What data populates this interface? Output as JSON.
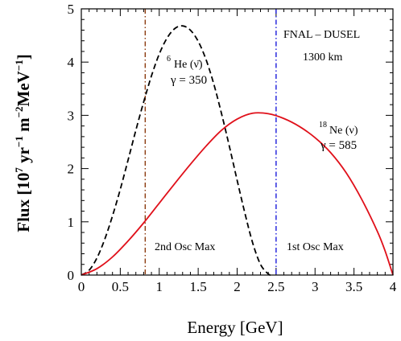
{
  "chart_data": {
    "type": "line",
    "xlabel": "Energy [GeV]",
    "ylabel": "Flux",
    "ylabel_unit": "[10⁷ yr⁻¹ m⁻² MeV⁻¹]",
    "xlim": [
      0,
      4
    ],
    "ylim": [
      0,
      5
    ],
    "x_ticks": [
      "0",
      "0.5",
      "1",
      "1.5",
      "2",
      "2.5",
      "3",
      "3.5",
      "4"
    ],
    "y_ticks": [
      "0",
      "1",
      "2",
      "3",
      "4",
      "5"
    ],
    "grid": false,
    "series": [
      {
        "id": "he6",
        "label_iso": "6",
        "label_main": "He (ν̄)",
        "label_gamma": "γ = 350",
        "color": "#000000",
        "style": "dashed",
        "x": [
          0,
          0.1,
          0.2,
          0.3,
          0.4,
          0.5,
          0.6,
          0.7,
          0.8,
          0.9,
          1.0,
          1.1,
          1.2,
          1.3,
          1.4,
          1.5,
          1.6,
          1.7,
          1.8,
          1.9,
          2.0,
          2.1,
          2.2,
          2.3,
          2.4,
          2.44
        ],
        "y": [
          0,
          0.09,
          0.32,
          0.67,
          1.11,
          1.61,
          2.16,
          2.72,
          3.25,
          3.74,
          4.15,
          4.45,
          4.63,
          4.68,
          4.6,
          4.39,
          4.05,
          3.59,
          3.03,
          2.42,
          1.78,
          1.16,
          0.6,
          0.2,
          0.02,
          0
        ]
      },
      {
        "id": "ne18",
        "label_iso": "18",
        "label_main": "Ne (ν)",
        "label_gamma": "γ = 585",
        "color": "#e0101a",
        "style": "solid",
        "x": [
          0,
          0.2,
          0.4,
          0.6,
          0.8,
          1.0,
          1.2,
          1.4,
          1.6,
          1.8,
          2.0,
          2.2,
          2.4,
          2.6,
          2.8,
          3.0,
          3.2,
          3.4,
          3.6,
          3.8,
          3.9,
          4.0
        ],
        "y": [
          0,
          0.12,
          0.34,
          0.64,
          0.98,
          1.35,
          1.72,
          2.08,
          2.42,
          2.72,
          2.93,
          3.04,
          3.03,
          2.94,
          2.79,
          2.58,
          2.3,
          1.92,
          1.42,
          0.82,
          0.45,
          0
        ]
      }
    ],
    "vlines": [
      {
        "id": "osc2",
        "x": 0.82,
        "color": "#8b3a0e",
        "style": "dashdot",
        "label": "2nd Osc Max"
      },
      {
        "id": "osc1",
        "x": 2.5,
        "color": "#1a1adb",
        "style": "dashdot",
        "label": "1st Osc Max"
      }
    ],
    "annotations": {
      "baseline": "FNAL – DUSEL",
      "distance": "1300 km"
    }
  }
}
